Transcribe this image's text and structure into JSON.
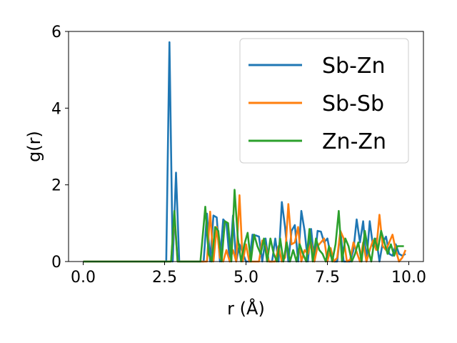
{
  "chart_data": {
    "type": "line",
    "xlabel": "r (Å)",
    "ylabel": "g(r)",
    "xlim": [
      -0.45,
      10.45
    ],
    "ylim": [
      0,
      6
    ],
    "xticks": [
      "0.0",
      "2.5",
      "5.0",
      "7.5",
      "10.0"
    ],
    "yticks": [
      "0",
      "2",
      "4",
      "6"
    ],
    "grid": false,
    "legend_position": "top-right",
    "series": [
      {
        "name": "Sb-Zn",
        "color": "#1f77b4",
        "x": [
          0,
          2.5,
          2.55,
          2.65,
          2.75,
          2.85,
          2.95,
          3.05,
          3.7,
          3.8,
          3.9,
          4.0,
          4.1,
          4.2,
          4.3,
          4.4,
          4.5,
          4.6,
          4.7,
          4.8,
          5.0,
          5.1,
          5.2,
          5.3,
          5.4,
          5.5,
          5.6,
          5.7,
          5.8,
          5.9,
          6.0,
          6.1,
          6.2,
          6.3,
          6.4,
          6.5,
          6.6,
          6.7,
          6.8,
          6.9,
          7.0,
          7.1,
          7.2,
          7.3,
          7.4,
          7.5,
          7.6,
          7.7,
          7.8,
          7.9,
          8.0,
          8.1,
          8.2,
          8.3,
          8.4,
          8.5,
          8.6,
          8.7,
          8.8,
          8.9,
          9.0,
          9.1,
          9.2,
          9.3,
          9.4,
          9.5,
          9.6,
          9.7,
          9.8,
          9.9
        ],
        "values": [
          0,
          0,
          0,
          5.72,
          0,
          2.32,
          0,
          0,
          0,
          1.25,
          0,
          1.2,
          1.15,
          0,
          1.1,
          1.0,
          0,
          1.2,
          0,
          0.45,
          0,
          0,
          0.7,
          0.68,
          0.65,
          0,
          0.6,
          0,
          0,
          0.6,
          0,
          1.55,
          0.9,
          0,
          0.8,
          0.95,
          0,
          1.32,
          0.8,
          0,
          0.85,
          0,
          0.8,
          0.78,
          0.5,
          0.6,
          0.15,
          0,
          0,
          0.8,
          0,
          0,
          0,
          0.3,
          1.1,
          0.5,
          1.05,
          0,
          1.05,
          0.4,
          0.6,
          0,
          0.5,
          0.65,
          0.2,
          0.15,
          0.45,
          0.2,
          0.15,
          0.2
        ]
      },
      {
        "name": "Sb-Sb",
        "color": "#ff7f0e",
        "x": [
          0,
          2.6,
          2.7,
          2.8,
          2.9,
          3.6,
          3.8,
          3.9,
          4.0,
          4.1,
          4.2,
          4.3,
          4.4,
          4.5,
          4.6,
          4.7,
          4.8,
          4.9,
          5.0,
          5.1,
          5.2,
          5.3,
          5.4,
          5.5,
          5.6,
          5.7,
          5.8,
          5.9,
          6.0,
          6.1,
          6.2,
          6.3,
          6.4,
          6.5,
          6.6,
          6.7,
          6.8,
          6.9,
          7.0,
          7.1,
          7.2,
          7.3,
          7.4,
          7.5,
          7.6,
          7.7,
          7.8,
          7.9,
          8.0,
          8.1,
          8.2,
          8.3,
          8.4,
          8.5,
          8.6,
          8.7,
          8.8,
          8.9,
          9.0,
          9.1,
          9.2,
          9.3,
          9.4,
          9.5,
          9.6,
          9.7,
          9.8,
          9.9
        ],
        "values": [
          0,
          0,
          0,
          1.22,
          0,
          0,
          0,
          1.3,
          0,
          0.9,
          0.1,
          0,
          0.3,
          0,
          0.3,
          0,
          1.73,
          0,
          0.45,
          0,
          0,
          0,
          0,
          0.55,
          0.4,
          0,
          0,
          0,
          0.4,
          0,
          0.1,
          1.5,
          0.45,
          0.5,
          0.9,
          0,
          0.3,
          0.2,
          0.5,
          0,
          0.4,
          0.5,
          0.6,
          0,
          0.35,
          0,
          0.1,
          0.8,
          0.6,
          0,
          0.05,
          0.5,
          0.25,
          0,
          0.5,
          0,
          0.3,
          0.55,
          0.3,
          1.22,
          0.4,
          0.3,
          0.5,
          0.7,
          0.3,
          0,
          0.1,
          0.3
        ]
      },
      {
        "name": "Zn-Zn",
        "color": "#2ca02c",
        "x": [
          0,
          2.6,
          2.7,
          2.8,
          2.9,
          3.6,
          3.75,
          3.85,
          3.95,
          4.05,
          4.15,
          4.25,
          4.35,
          4.45,
          4.55,
          4.65,
          4.75,
          4.85,
          4.95,
          5.05,
          5.15,
          5.25,
          5.35,
          5.45,
          5.55,
          5.65,
          5.75,
          5.85,
          5.95,
          6.05,
          6.15,
          6.25,
          6.35,
          6.45,
          6.55,
          6.65,
          6.75,
          6.85,
          6.95,
          7.05,
          7.15,
          7.25,
          7.35,
          7.45,
          7.55,
          7.65,
          7.75,
          7.85,
          7.95,
          8.05,
          8.15,
          8.25,
          8.35,
          8.45,
          8.55,
          8.65,
          8.75,
          8.85,
          8.95,
          9.05,
          9.15,
          9.25,
          9.35,
          9.45,
          9.55,
          9.65,
          9.75,
          9.85
        ],
        "values": [
          0,
          0,
          0,
          1.32,
          0,
          0,
          1.43,
          0.2,
          0,
          0.9,
          0.8,
          0,
          1.05,
          1.0,
          0,
          1.87,
          0.6,
          0,
          0.45,
          0.75,
          0,
          0.7,
          0.4,
          0.2,
          0.6,
          0,
          0.6,
          0.2,
          0,
          0.6,
          0,
          0.5,
          0,
          0.3,
          0,
          0.45,
          0.2,
          0,
          0.85,
          0,
          0.6,
          0.3,
          0.2,
          0,
          0.4,
          0,
          0.45,
          1.32,
          0,
          0.6,
          0.4,
          0,
          0.2,
          0.5,
          0,
          0.8,
          0.3,
          0,
          0.6,
          0.3,
          0.8,
          0.5,
          0.2,
          0.45,
          0.15,
          0.4,
          0.4,
          0.4
        ]
      }
    ]
  }
}
